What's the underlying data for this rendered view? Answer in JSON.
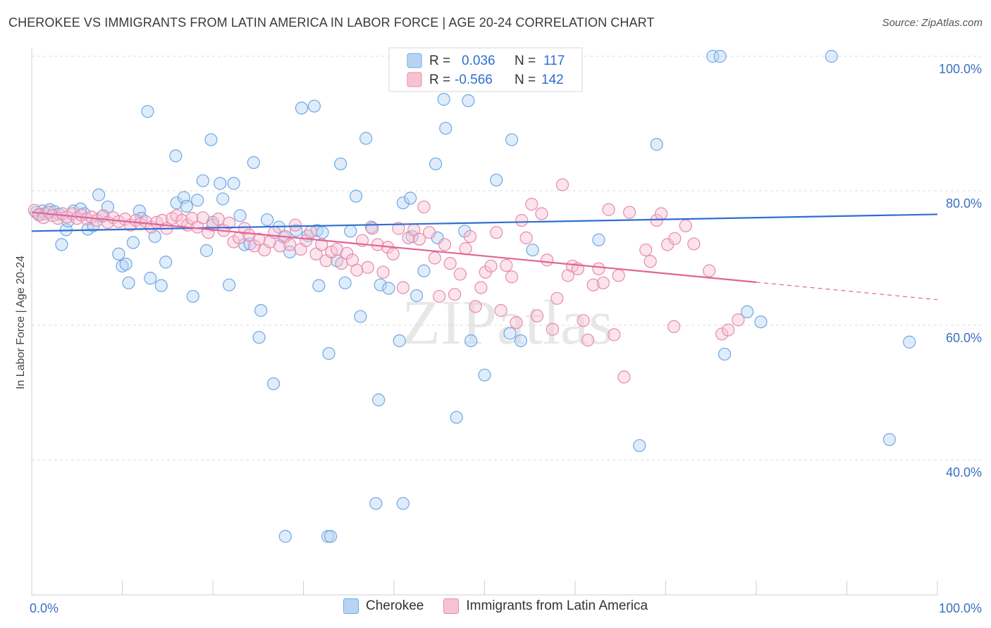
{
  "header": {
    "title": "CHEROKEE VS IMMIGRANTS FROM LATIN AMERICA IN LABOR FORCE | AGE 20-24 CORRELATION CHART",
    "source": "Source: ZipAtlas.com"
  },
  "watermark": "ZIPatlas",
  "legend": {
    "rows": [
      {
        "r_label": "R =",
        "r_value": "0.036",
        "n_label": "N =",
        "n_value": "117",
        "color": "#6fa8e6",
        "fill": "#b9d4f3"
      },
      {
        "r_label": "R =",
        "r_value": "-0.566",
        "n_label": "N =",
        "n_value": "142",
        "color": "#e88aaa",
        "fill": "#f6c3d4"
      }
    ]
  },
  "bottom_legend": [
    {
      "label": "Cherokee",
      "fill": "#b9d4f3",
      "border": "#6fa8e6"
    },
    {
      "label": "Immigrants from Latin America",
      "fill": "#f6c3d4",
      "border": "#e88aaa"
    }
  ],
  "chart_data": {
    "type": "scatter",
    "ylabel": "In Labor Force | Age 20-24",
    "xlim": [
      0,
      100
    ],
    "ylim": [
      20,
      103
    ],
    "x_tick_labels": {
      "left": "0.0%",
      "right": "100.0%"
    },
    "y_ticks": [
      {
        "value": 100,
        "label": "100.0%"
      },
      {
        "value": 80,
        "label": "80.0%"
      },
      {
        "value": 60,
        "label": "60.0%"
      },
      {
        "value": 40,
        "label": "40.0%"
      }
    ],
    "grid": true,
    "series": [
      {
        "name": "Cherokee",
        "stroke": "#6fa8e6",
        "fill": "#b9d4f3",
        "trend": {
          "x0": 0,
          "y0": 74.0,
          "x1": 100,
          "y1": 76.5,
          "color": "#2e6fcf",
          "dashed_from": null
        },
        "points": [
          [
            0.5,
            76.8
          ],
          [
            0.8,
            76.5
          ],
          [
            1.2,
            77.0
          ],
          [
            1.5,
            76.6
          ],
          [
            2.0,
            77.2
          ],
          [
            2.5,
            76.9
          ],
          [
            3.0,
            76.5
          ],
          [
            3.3,
            72.0
          ],
          [
            3.8,
            74.2
          ],
          [
            4.0,
            75.5
          ],
          [
            4.6,
            77.0
          ],
          [
            5.4,
            77.3
          ],
          [
            5.8,
            76.6
          ],
          [
            6.2,
            74.3
          ],
          [
            6.8,
            74.8
          ],
          [
            7.4,
            79.4
          ],
          [
            7.8,
            76.2
          ],
          [
            8.4,
            77.6
          ],
          [
            9.6,
            70.6
          ],
          [
            10.0,
            68.8
          ],
          [
            10.4,
            69.1
          ],
          [
            10.7,
            66.3
          ],
          [
            11.2,
            72.3
          ],
          [
            11.9,
            77.0
          ],
          [
            12.1,
            75.9
          ],
          [
            12.8,
            91.8
          ],
          [
            13.1,
            67.0
          ],
          [
            13.6,
            73.2
          ],
          [
            14.3,
            65.9
          ],
          [
            14.8,
            69.4
          ],
          [
            15.9,
            85.2
          ],
          [
            16.0,
            78.2
          ],
          [
            16.8,
            79.0
          ],
          [
            17.1,
            77.7
          ],
          [
            17.8,
            64.3
          ],
          [
            18.3,
            78.6
          ],
          [
            18.9,
            81.5
          ],
          [
            19.3,
            71.1
          ],
          [
            19.8,
            87.6
          ],
          [
            20.0,
            75.3
          ],
          [
            20.8,
            81.1
          ],
          [
            21.1,
            78.8
          ],
          [
            21.8,
            66.0
          ],
          [
            22.3,
            81.1
          ],
          [
            23.0,
            76.3
          ],
          [
            23.5,
            72.0
          ],
          [
            24.1,
            72.1
          ],
          [
            24.5,
            84.2
          ],
          [
            25.3,
            62.2
          ],
          [
            25.1,
            58.2
          ],
          [
            26.0,
            75.7
          ],
          [
            26.7,
            51.3
          ],
          [
            27.3,
            74.6
          ],
          [
            27.8,
            73.1
          ],
          [
            28.5,
            70.9
          ],
          [
            29.2,
            74.1
          ],
          [
            29.8,
            92.3
          ],
          [
            30.5,
            73.3
          ],
          [
            31.2,
            92.6
          ],
          [
            31.5,
            74.1
          ],
          [
            31.7,
            65.9
          ],
          [
            32.1,
            73.8
          ],
          [
            32.7,
            28.6
          ],
          [
            32.8,
            55.8
          ],
          [
            33.7,
            69.6
          ],
          [
            34.1,
            84.0
          ],
          [
            34.6,
            66.3
          ],
          [
            35.2,
            74.0
          ],
          [
            35.8,
            79.2
          ],
          [
            36.3,
            61.3
          ],
          [
            36.9,
            87.8
          ],
          [
            37.5,
            74.6
          ],
          [
            38.3,
            48.9
          ],
          [
            38.5,
            66.0
          ],
          [
            39.4,
            65.5
          ],
          [
            40.6,
            57.7
          ],
          [
            41.0,
            78.2
          ],
          [
            41.8,
            78.9
          ],
          [
            42.0,
            73.2
          ],
          [
            42.5,
            64.4
          ],
          [
            43.3,
            68.1
          ],
          [
            44.6,
            84.0
          ],
          [
            44.8,
            73.0
          ],
          [
            45.7,
            89.3
          ],
          [
            45.5,
            93.6
          ],
          [
            46.0,
            100.0
          ],
          [
            46.9,
            46.3
          ],
          [
            47.8,
            74.0
          ],
          [
            48.2,
            93.4
          ],
          [
            48.5,
            57.7
          ],
          [
            50.0,
            52.6
          ],
          [
            51.3,
            81.6
          ],
          [
            52.8,
            58.8
          ],
          [
            53.0,
            87.6
          ],
          [
            54.0,
            57.7
          ],
          [
            55.3,
            71.2
          ],
          [
            57.0,
            100.0
          ],
          [
            58.2,
            100.0
          ],
          [
            59.5,
            100.0
          ],
          [
            62.6,
            72.7
          ],
          [
            67.1,
            42.1
          ],
          [
            69.0,
            86.9
          ],
          [
            75.2,
            100.0
          ],
          [
            76.0,
            100.0
          ],
          [
            76.5,
            55.7
          ],
          [
            79.0,
            62.0
          ],
          [
            80.5,
            60.5
          ],
          [
            88.3,
            100.0
          ],
          [
            94.7,
            43.0
          ],
          [
            96.9,
            57.5
          ],
          [
            33.0,
            28.6
          ],
          [
            28.0,
            28.6
          ],
          [
            38.0,
            33.5
          ],
          [
            41.0,
            33.5
          ]
        ]
      },
      {
        "name": "Immigrants from Latin America",
        "stroke": "#e88aaa",
        "fill": "#f6c3d4",
        "trend": {
          "x0": 0,
          "y0": 76.8,
          "x1": 100,
          "y1": 63.8,
          "color": "#e0649a",
          "dashed_from": 80
        },
        "points": [
          [
            0.3,
            77.1
          ],
          [
            0.8,
            76.4
          ],
          [
            1.3,
            76.0
          ],
          [
            1.9,
            76.8
          ],
          [
            2.3,
            76.3
          ],
          [
            2.9,
            75.9
          ],
          [
            3.4,
            76.6
          ],
          [
            3.9,
            76.1
          ],
          [
            4.5,
            76.6
          ],
          [
            5.0,
            75.9
          ],
          [
            5.5,
            76.4
          ],
          [
            6.1,
            75.8
          ],
          [
            6.6,
            76.1
          ],
          [
            7.2,
            75.6
          ],
          [
            7.9,
            76.3
          ],
          [
            8.4,
            75.3
          ],
          [
            9.0,
            76.0
          ],
          [
            9.6,
            75.4
          ],
          [
            10.3,
            75.8
          ],
          [
            10.9,
            74.9
          ],
          [
            11.5,
            75.6
          ],
          [
            12.0,
            75.1
          ],
          [
            12.6,
            75.4
          ],
          [
            13.2,
            74.6
          ],
          [
            13.8,
            75.3
          ],
          [
            14.4,
            75.6
          ],
          [
            14.9,
            74.4
          ],
          [
            15.5,
            75.9
          ],
          [
            16.0,
            76.3
          ],
          [
            16.6,
            75.6
          ],
          [
            17.2,
            74.9
          ],
          [
            17.7,
            75.9
          ],
          [
            18.3,
            74.6
          ],
          [
            18.9,
            76.0
          ],
          [
            19.5,
            73.8
          ],
          [
            20.0,
            74.9
          ],
          [
            20.6,
            75.8
          ],
          [
            21.2,
            74.1
          ],
          [
            21.8,
            75.2
          ],
          [
            22.3,
            72.4
          ],
          [
            22.9,
            73.0
          ],
          [
            23.5,
            74.4
          ],
          [
            24.0,
            73.4
          ],
          [
            24.6,
            71.8
          ],
          [
            25.1,
            72.8
          ],
          [
            25.7,
            71.2
          ],
          [
            26.3,
            72.4
          ],
          [
            26.8,
            73.8
          ],
          [
            27.4,
            71.8
          ],
          [
            28.0,
            73.2
          ],
          [
            28.5,
            72.0
          ],
          [
            29.1,
            74.9
          ],
          [
            29.7,
            71.3
          ],
          [
            30.3,
            72.6
          ],
          [
            30.8,
            73.9
          ],
          [
            31.4,
            70.6
          ],
          [
            32.0,
            72.0
          ],
          [
            32.5,
            69.6
          ],
          [
            33.1,
            70.9
          ],
          [
            33.7,
            71.3
          ],
          [
            34.2,
            69.2
          ],
          [
            34.8,
            70.7
          ],
          [
            35.4,
            69.7
          ],
          [
            35.9,
            68.2
          ],
          [
            36.5,
            72.6
          ],
          [
            37.1,
            68.6
          ],
          [
            37.6,
            74.4
          ],
          [
            38.2,
            72.0
          ],
          [
            38.8,
            67.9
          ],
          [
            39.3,
            71.6
          ],
          [
            39.9,
            70.6
          ],
          [
            40.5,
            74.4
          ],
          [
            41.0,
            65.6
          ],
          [
            41.6,
            73.0
          ],
          [
            42.2,
            74.2
          ],
          [
            42.8,
            72.8
          ],
          [
            43.3,
            77.6
          ],
          [
            43.9,
            73.8
          ],
          [
            44.5,
            70.0
          ],
          [
            45.0,
            64.3
          ],
          [
            45.6,
            72.0
          ],
          [
            46.2,
            69.2
          ],
          [
            46.7,
            64.6
          ],
          [
            47.3,
            67.6
          ],
          [
            47.9,
            71.4
          ],
          [
            48.4,
            73.2
          ],
          [
            49.0,
            62.8
          ],
          [
            49.6,
            65.6
          ],
          [
            50.1,
            67.9
          ],
          [
            50.7,
            68.8
          ],
          [
            51.3,
            73.8
          ],
          [
            51.8,
            62.2
          ],
          [
            52.4,
            68.9
          ],
          [
            53.0,
            67.2
          ],
          [
            53.5,
            60.4
          ],
          [
            54.1,
            75.6
          ],
          [
            54.6,
            73.0
          ],
          [
            55.2,
            78.0
          ],
          [
            55.8,
            61.4
          ],
          [
            56.3,
            76.6
          ],
          [
            56.9,
            69.7
          ],
          [
            57.5,
            59.4
          ],
          [
            58.0,
            64.0
          ],
          [
            58.6,
            80.9
          ],
          [
            59.2,
            67.4
          ],
          [
            59.7,
            68.8
          ],
          [
            60.3,
            68.4
          ],
          [
            60.9,
            60.7
          ],
          [
            61.4,
            57.8
          ],
          [
            62.0,
            66.0
          ],
          [
            62.6,
            68.4
          ],
          [
            63.1,
            66.3
          ],
          [
            63.7,
            77.2
          ],
          [
            64.3,
            58.6
          ],
          [
            64.8,
            67.4
          ],
          [
            65.4,
            52.3
          ],
          [
            66.0,
            76.8
          ],
          [
            67.8,
            71.2
          ],
          [
            68.3,
            69.5
          ],
          [
            69.0,
            75.6
          ],
          [
            69.5,
            76.6
          ],
          [
            70.2,
            72.0
          ],
          [
            70.9,
            59.8
          ],
          [
            71.0,
            72.9
          ],
          [
            73.1,
            72.1
          ],
          [
            72.2,
            74.8
          ],
          [
            74.8,
            68.1
          ],
          [
            76.2,
            58.7
          ],
          [
            76.9,
            59.3
          ],
          [
            78.0,
            60.8
          ]
        ]
      }
    ]
  }
}
